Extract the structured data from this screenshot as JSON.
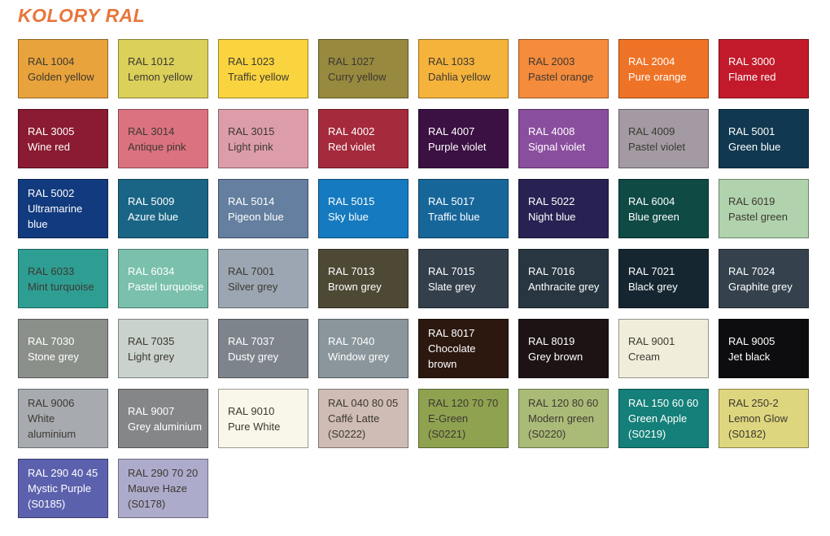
{
  "colors": {
    "page_bg": "#FFFFFF",
    "title": "#E8763C",
    "swatch_border": "rgba(0,0,0,0.38)",
    "text_dark": "#3D3831",
    "text_light": "#FFFFFF"
  },
  "chart_data": {
    "type": "table",
    "title": "KOLORY RAL",
    "columns": [
      "code",
      "name",
      "sub",
      "bg",
      "fg"
    ],
    "legend_position": "none",
    "grid": "8 columns x 7 rows, last row has 2 items",
    "rows": [
      {
        "code": "RAL 1004",
        "name": "Golden yellow",
        "bg": "#E8A33C",
        "fg": "#3D3831"
      },
      {
        "code": "RAL 1012",
        "name": "Lemon yellow",
        "bg": "#DAD05A",
        "fg": "#3D3831"
      },
      {
        "code": "RAL 1023",
        "name": "Traffic yellow",
        "bg": "#F9D43F",
        "fg": "#3D3831"
      },
      {
        "code": "RAL 1027",
        "name": "Curry yellow",
        "bg": "#97893E",
        "fg": "#3D3831"
      },
      {
        "code": "RAL 1033",
        "name": "Dahlia yellow",
        "bg": "#F5B33C",
        "fg": "#3D3831"
      },
      {
        "code": "RAL 2003",
        "name": "Pastel orange",
        "bg": "#F58B3D",
        "fg": "#3D3831"
      },
      {
        "code": "RAL 2004",
        "name": "Pure orange",
        "bg": "#EF7326",
        "fg": "#FFFFFF"
      },
      {
        "code": "RAL 3000",
        "name": "Flame red",
        "bg": "#C21A2B",
        "fg": "#FFFFFF"
      },
      {
        "code": "RAL 3005",
        "name": "Wine red",
        "bg": "#8A1B32",
        "fg": "#FFFFFF"
      },
      {
        "code": "RAL 3014",
        "name": "Antique pink",
        "bg": "#DB7280",
        "fg": "#3D3831"
      },
      {
        "code": "RAL 3015",
        "name": "Light pink",
        "bg": "#DC9DA9",
        "fg": "#3D3831"
      },
      {
        "code": "RAL 4002",
        "name": "Red violet",
        "bg": "#A42A3C",
        "fg": "#FFFFFF"
      },
      {
        "code": "RAL 4007",
        "name": "Purple violet",
        "bg": "#3B1042",
        "fg": "#FFFFFF"
      },
      {
        "code": "RAL 4008",
        "name": "Signal violet",
        "bg": "#8A4E9E",
        "fg": "#FFFFFF"
      },
      {
        "code": "RAL 4009",
        "name": "Pastel violet",
        "bg": "#A39AA3",
        "fg": "#3D3831"
      },
      {
        "code": "RAL 5001",
        "name": "Green blue",
        "bg": "#103850",
        "fg": "#FFFFFF"
      },
      {
        "code": "RAL 5002",
        "name": "Ultramarine\nblue",
        "bg": "#123A7E",
        "fg": "#FFFFFF"
      },
      {
        "code": "RAL 5009",
        "name": "Azure blue",
        "bg": "#1A6585",
        "fg": "#FFFFFF"
      },
      {
        "code": "RAL 5014",
        "name": "Pigeon blue",
        "bg": "#647F9F",
        "fg": "#FFFFFF"
      },
      {
        "code": "RAL 5015",
        "name": "Sky blue",
        "bg": "#157ABF",
        "fg": "#FFFFFF"
      },
      {
        "code": "RAL 5017",
        "name": "Traffic blue",
        "bg": "#17669A",
        "fg": "#FFFFFF"
      },
      {
        "code": "RAL 5022",
        "name": "Night blue",
        "bg": "#272253",
        "fg": "#FFFFFF"
      },
      {
        "code": "RAL 6004",
        "name": "Blue green",
        "bg": "#0F4A45",
        "fg": "#FFFFFF"
      },
      {
        "code": "RAL 6019",
        "name": "Pastel green",
        "bg": "#B0D3AD",
        "fg": "#3D3831"
      },
      {
        "code": "RAL 6033",
        "name": "Mint turquoise",
        "bg": "#2E9E93",
        "fg": "#3D3831"
      },
      {
        "code": "RAL 6034",
        "name": "Pastel turquoise",
        "bg": "#7AC0AC",
        "fg": "#FFFFFF"
      },
      {
        "code": "RAL 7001",
        "name": "Silver grey",
        "bg": "#9BA6B2",
        "fg": "#3D3831"
      },
      {
        "code": "RAL 7013",
        "name": "Brown grey",
        "bg": "#4E4935",
        "fg": "#FFFFFF"
      },
      {
        "code": "RAL 7015",
        "name": "Slate grey",
        "bg": "#333F4B",
        "fg": "#FFFFFF"
      },
      {
        "code": "RAL 7016",
        "name": "Anthracite grey",
        "bg": "#273640",
        "fg": "#FFFFFF"
      },
      {
        "code": "RAL 7021",
        "name": "Black grey",
        "bg": "#152631",
        "fg": "#FFFFFF"
      },
      {
        "code": "RAL 7024",
        "name": "Graphite grey",
        "bg": "#35424D",
        "fg": "#FFFFFF"
      },
      {
        "code": "RAL 7030",
        "name": "Stone grey",
        "bg": "#8A9089",
        "fg": "#FFFFFF"
      },
      {
        "code": "RAL 7035",
        "name": "Light grey",
        "bg": "#C9D2CC",
        "fg": "#3D3831"
      },
      {
        "code": "RAL 7037",
        "name": "Dusty grey",
        "bg": "#7D848C",
        "fg": "#FFFFFF"
      },
      {
        "code": "RAL 7040",
        "name": "Window grey",
        "bg": "#8A969C",
        "fg": "#FFFFFF"
      },
      {
        "code": "RAL 8017",
        "name": "Chocolate\nbrown",
        "bg": "#2C180F",
        "fg": "#FFFFFF"
      },
      {
        "code": "RAL 8019",
        "name": "Grey brown",
        "bg": "#1D1315",
        "fg": "#FFFFFF"
      },
      {
        "code": "RAL 9001",
        "name": "Cream",
        "bg": "#F0EEDB",
        "fg": "#3D3831"
      },
      {
        "code": "RAL 9005",
        "name": "Jet black",
        "bg": "#0D0D0F",
        "fg": "#FFFFFF"
      },
      {
        "code": "RAL 9006",
        "name": "White\naluminium",
        "bg": "#A7ABB0",
        "fg": "#3D3831"
      },
      {
        "code": "RAL 9007",
        "name": "Grey aluminium",
        "bg": "#848688",
        "fg": "#FFFFFF"
      },
      {
        "code": "RAL 9010",
        "name": "Pure White",
        "bg": "#F8F7EA",
        "fg": "#3D3831"
      },
      {
        "code": "RAL 040 80 05",
        "name": "Caffé Latte",
        "sub": "(S0222)",
        "bg": "#CEBCB5",
        "fg": "#3D3831"
      },
      {
        "code": "RAL 120 70 70",
        "name": "E-Green",
        "sub": "(S0221)",
        "bg": "#8FA250",
        "fg": "#3D3831"
      },
      {
        "code": "RAL 120 80 60",
        "name": "Modern green",
        "sub": "(S0220)",
        "bg": "#AABB78",
        "fg": "#3D3831"
      },
      {
        "code": "RAL 150 60 60",
        "name": "Green Apple",
        "sub": "(S0219)",
        "bg": "#148079",
        "fg": "#FFFFFF"
      },
      {
        "code": "RAL 250-2",
        "name": "Lemon Glow",
        "sub": "(S0182)",
        "bg": "#DED67E",
        "fg": "#3D3831"
      },
      {
        "code": "RAL 290 40 45",
        "name": "Mystic Purple",
        "sub": "(S0185)",
        "bg": "#5C61AE",
        "fg": "#FFFFFF"
      },
      {
        "code": "RAL 290 70 20",
        "name": "Mauve Haze",
        "sub": "(S0178)",
        "bg": "#ADABCC",
        "fg": "#3D3831"
      }
    ]
  }
}
